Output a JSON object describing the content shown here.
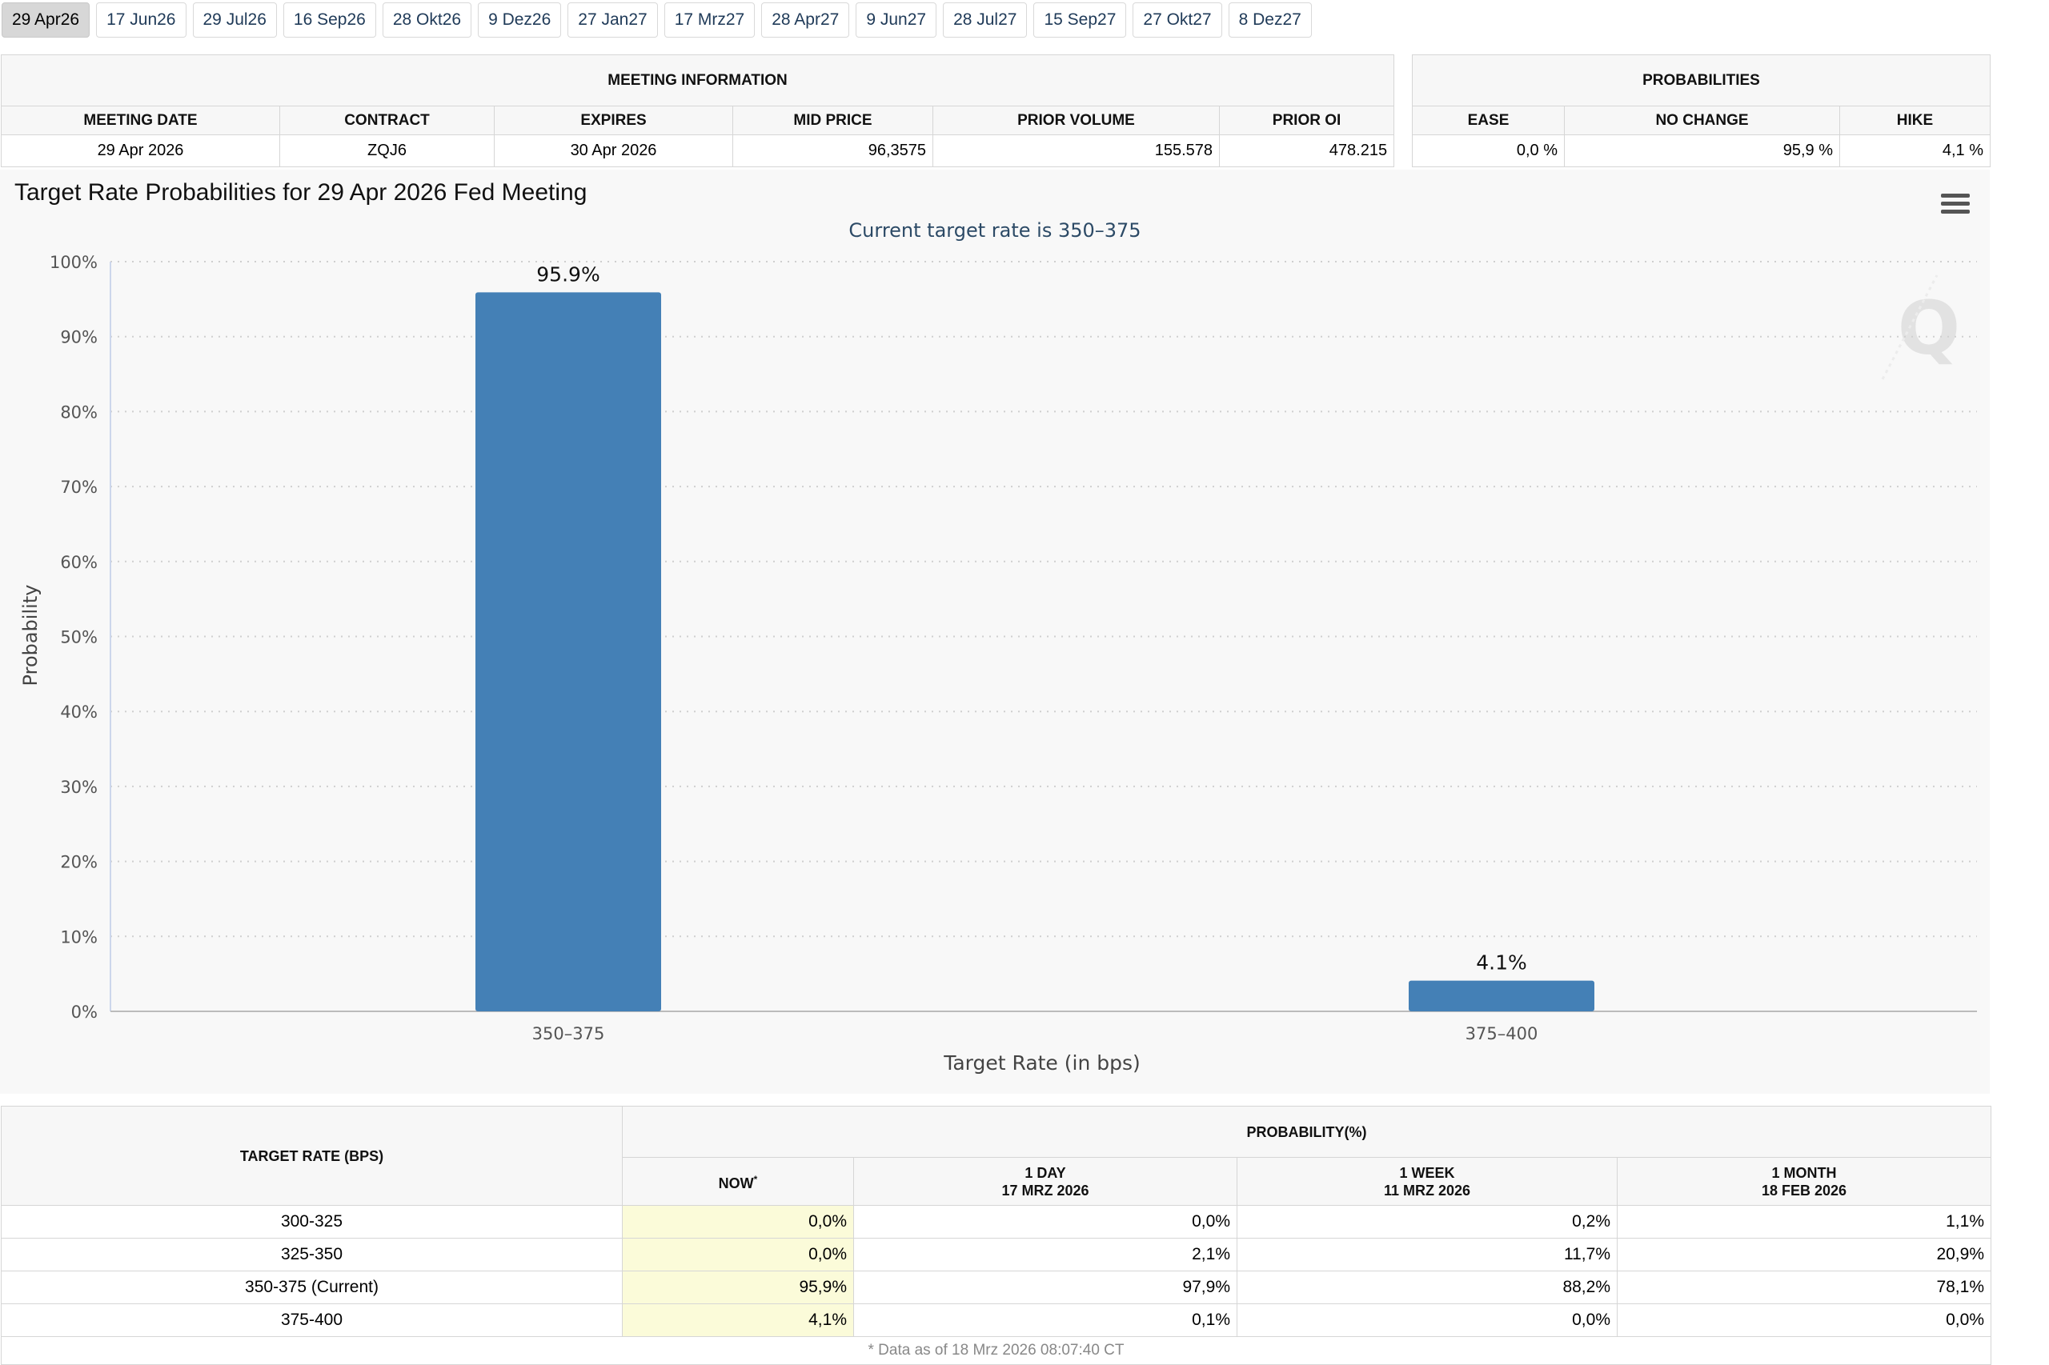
{
  "tabs": [
    "29 Apr26",
    "17 Jun26",
    "29 Jul26",
    "16 Sep26",
    "28 Okt26",
    "9 Dez26",
    "27 Jan27",
    "17 Mrz27",
    "28 Apr27",
    "9 Jun27",
    "28 Jul27",
    "15 Sep27",
    "27 Okt27",
    "8 Dez27"
  ],
  "active_tab": "29 Apr26",
  "meeting_info": {
    "title": "MEETING INFORMATION",
    "headers": [
      "MEETING DATE",
      "CONTRACT",
      "EXPIRES",
      "MID PRICE",
      "PRIOR VOLUME",
      "PRIOR OI"
    ],
    "row": [
      "29 Apr 2026",
      "ZQJ6",
      "30 Apr 2026",
      "96,3575",
      "155.578",
      "478.215"
    ]
  },
  "probabilities": {
    "title": "PROBABILITIES",
    "headers": [
      "EASE",
      "NO CHANGE",
      "HIKE"
    ],
    "row": [
      "0,0 %",
      "95,9 %",
      "4,1 %"
    ]
  },
  "chart_data": {
    "type": "bar",
    "title": "Target Rate Probabilities for 29 Apr 2026 Fed Meeting",
    "subtitle": "Current target rate is 350–375",
    "xlabel": "Target Rate (in bps)",
    "ylabel": "Probability",
    "categories": [
      "350–375",
      "375–400"
    ],
    "values": [
      95.9,
      4.1
    ],
    "data_labels": [
      "95.9%",
      "4.1%"
    ],
    "ylim": [
      0,
      100
    ],
    "yticks": [
      "0%",
      "10%",
      "20%",
      "30%",
      "40%",
      "50%",
      "60%",
      "70%",
      "80%",
      "90%",
      "100%"
    ],
    "bar_color": "#4480b6",
    "grid": true
  },
  "history": {
    "col_target": "TARGET RATE (BPS)",
    "col_group": "PROBABILITY(%)",
    "col_now": "NOW",
    "col_now_mark": "*",
    "col_1day": [
      "1 DAY",
      "17 MRZ 2026"
    ],
    "col_1week": [
      "1 WEEK",
      "11 MRZ 2026"
    ],
    "col_1month": [
      "1 MONTH",
      "18 FEB 2026"
    ],
    "rows": [
      {
        "rate": "300-325",
        "now": "0,0%",
        "d1": "0,0%",
        "w1": "0,2%",
        "m1": "1,1%"
      },
      {
        "rate": "325-350",
        "now": "0,0%",
        "d1": "2,1%",
        "w1": "11,7%",
        "m1": "20,9%"
      },
      {
        "rate": "350-375 (Current)",
        "now": "95,9%",
        "d1": "97,9%",
        "w1": "88,2%",
        "m1": "78,1%"
      },
      {
        "rate": "375-400",
        "now": "4,1%",
        "d1": "0,1%",
        "w1": "0,0%",
        "m1": "0,0%"
      }
    ],
    "footnote": "* Data as of 18 Mrz 2026 08:07:40 CT"
  }
}
